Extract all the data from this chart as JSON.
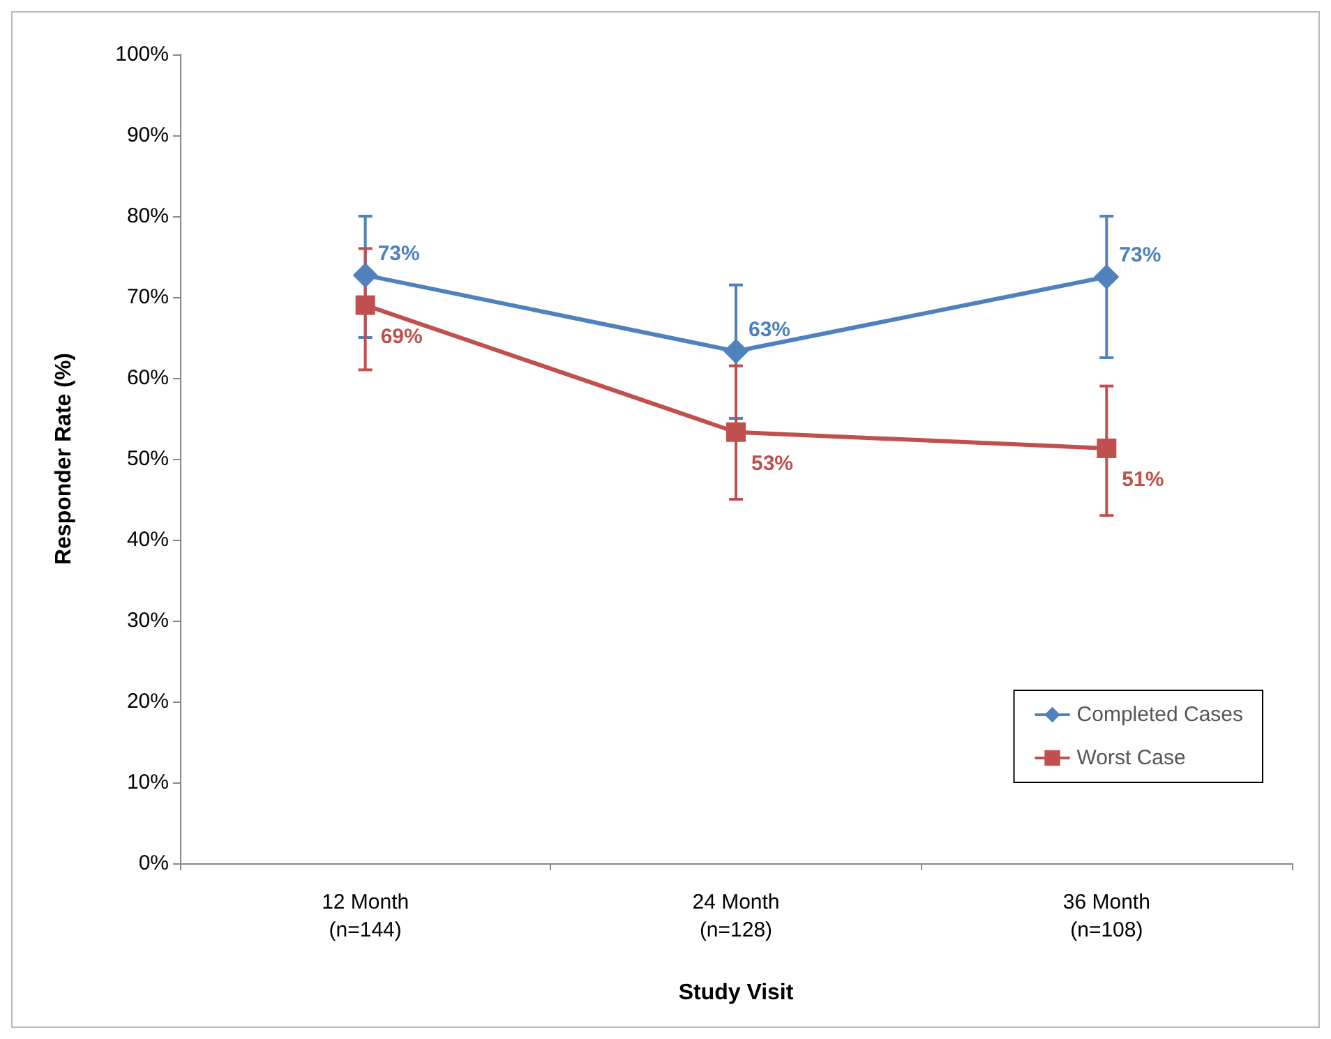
{
  "chart_data": {
    "type": "line",
    "xlabel": "Study Visit",
    "ylabel": "Responder Rate (%)",
    "categories": [
      "12 Month\n(n=144)",
      "24 Month\n(n=128)",
      "36 Month\n(n=108)"
    ],
    "series": [
      {
        "name": "Completed Cases",
        "color": "#4f81bd",
        "marker": "diamond",
        "values": [
          72.7,
          63.3,
          72.5
        ],
        "value_labels": [
          "73%",
          "63%",
          "73%"
        ],
        "errors": [
          [
            65,
            80
          ],
          [
            55,
            71.5
          ],
          [
            62.5,
            80
          ]
        ]
      },
      {
        "name": "Worst Case",
        "color": "#c0504d",
        "marker": "square",
        "values": [
          69,
          53.3,
          51.3
        ],
        "value_labels": [
          "69%",
          "53%",
          "51%"
        ],
        "errors": [
          [
            61,
            76
          ],
          [
            45,
            61.5
          ],
          [
            43,
            59
          ]
        ]
      }
    ],
    "ylim": [
      0,
      100
    ],
    "yticks": [
      {
        "value": 0,
        "label": "0%"
      },
      {
        "value": 10,
        "label": "10%"
      },
      {
        "value": 20,
        "label": "20%"
      },
      {
        "value": 30,
        "label": "30%"
      },
      {
        "value": 40,
        "label": "40%"
      },
      {
        "value": 50,
        "label": "50%"
      },
      {
        "value": 60,
        "label": "60%"
      },
      {
        "value": 70,
        "label": "70%"
      },
      {
        "value": 80,
        "label": "80%"
      },
      {
        "value": 90,
        "label": "90%"
      },
      {
        "value": 100,
        "label": "100%"
      }
    ],
    "grid": false,
    "legend": "bottom right"
  }
}
